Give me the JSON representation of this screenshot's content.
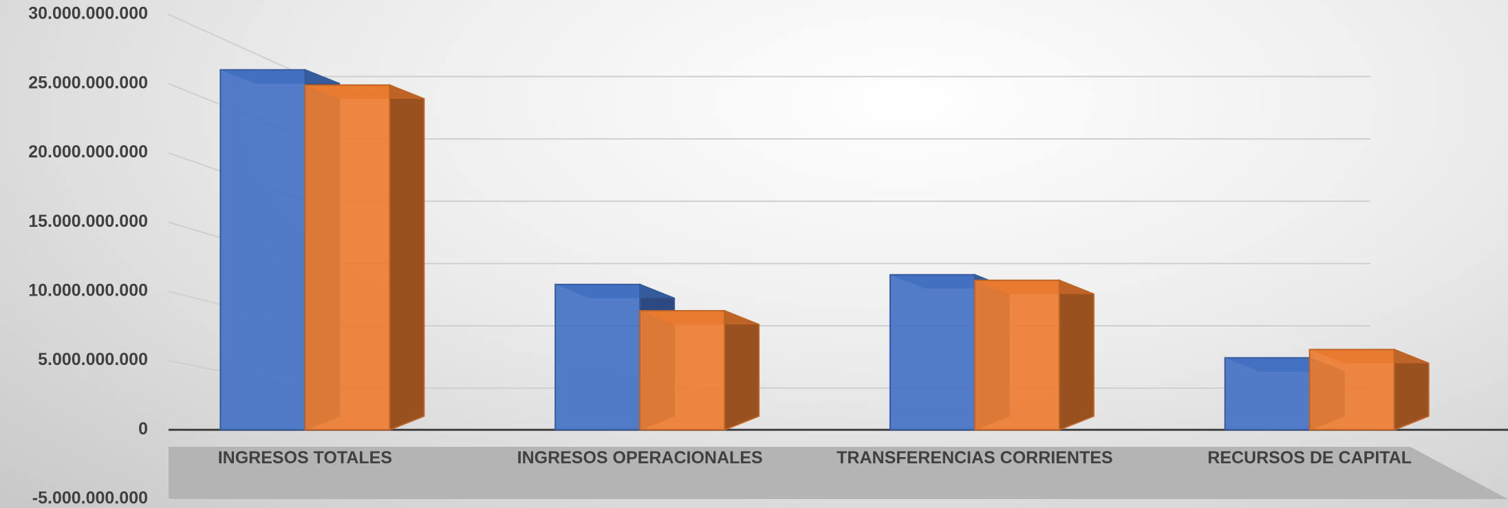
{
  "chart_data": {
    "type": "bar3d",
    "categories": [
      "INGRESOS TOTALES",
      "INGRESOS OPERACIONALES",
      "TRANSFERENCIAS CORRIENTES",
      "RECURSOS DE CAPITAL"
    ],
    "series": [
      {
        "color": "#4472c4",
        "values": [
          26000000000,
          10500000000,
          11200000000,
          5200000000
        ]
      },
      {
        "color": "#ed7d31",
        "values": [
          24900000000,
          8600000000,
          10800000000,
          5800000000
        ]
      }
    ],
    "ylim": [
      -5000000000,
      30000000000
    ],
    "yticks": [
      {
        "value": -5000000000,
        "label": "-5.000.000.000"
      },
      0,
      {
        "value": 5000000000,
        "label": "5.000.000.000"
      },
      {
        "value": 10000000000,
        "label": "10.000.000.000"
      },
      {
        "value": 15000000000,
        "label": "15.000.000.000"
      },
      {
        "value": 20000000000,
        "label": "20.000.000.000"
      },
      {
        "value": 25000000000,
        "label": "25.000.000.000"
      },
      {
        "value": 30000000000,
        "label": "30.000.000.000"
      }
    ],
    "grid": true
  }
}
